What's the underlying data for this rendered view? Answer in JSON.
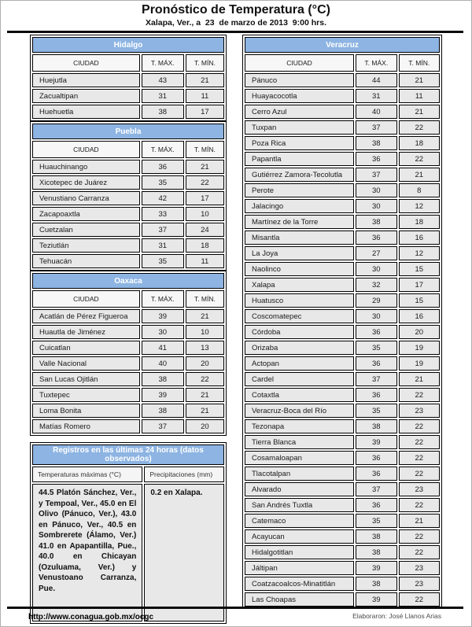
{
  "header": {
    "title": "Pronóstico de Temperatura (°C)",
    "subtitle": "Xalapa, Ver., a  23  de marzo de 2013  9:00 hrs."
  },
  "table_headers": {
    "city": "CIUDAD",
    "tmax": "T. MÁX.",
    "tmin": "T. MÍN."
  },
  "state_tables": [
    {
      "id": "hidalgo",
      "title": "Hidalgo",
      "column": "left",
      "rows": [
        [
          "Huejutla",
          43,
          21
        ],
        [
          "Zacualtipan",
          31,
          11
        ],
        [
          "Huehuetla",
          38,
          17
        ]
      ]
    },
    {
      "id": "puebla",
      "title": "Puebla",
      "column": "left",
      "rows": [
        [
          "Huauchinango",
          36,
          21
        ],
        [
          "Xicotepec de Juárez",
          35,
          22
        ],
        [
          "Venustiano Carranza",
          42,
          17
        ],
        [
          "Zacapoaxtla",
          33,
          10
        ],
        [
          "Cuetzalan",
          37,
          24
        ],
        [
          "Teziutlán",
          31,
          18
        ],
        [
          "Tehuacán",
          35,
          11
        ]
      ]
    },
    {
      "id": "oaxaca",
      "title": "Oaxaca",
      "column": "left",
      "rows": [
        [
          "Acatlán de Pérez Figueroa",
          39,
          21
        ],
        [
          "Huautla de Jiménez",
          30,
          10
        ],
        [
          "Cuicatlan",
          41,
          13
        ],
        [
          "Valle Nacional",
          40,
          20
        ],
        [
          "San Lucas Ojitlán",
          38,
          22
        ],
        [
          "Tuxtepec",
          39,
          21
        ],
        [
          "Loma Bonita",
          38,
          21
        ],
        [
          "Matías Romero",
          37,
          20
        ]
      ]
    },
    {
      "id": "veracruz",
      "title": "Veracruz",
      "column": "right",
      "rows": [
        [
          "Pánuco",
          44,
          21
        ],
        [
          "Huayacocotla",
          31,
          11
        ],
        [
          "Cerro Azul",
          40,
          21
        ],
        [
          "Tuxpan",
          37,
          22
        ],
        [
          "Poza Rica",
          38,
          18
        ],
        [
          "Papantla",
          36,
          22
        ],
        [
          "Gutiérrez Zamora-Tecolutla",
          37,
          21
        ],
        [
          "Perote",
          30,
          8
        ],
        [
          "Jalacingo",
          30,
          12
        ],
        [
          "Martínez de la Torre",
          38,
          18
        ],
        [
          "Misantla",
          36,
          16
        ],
        [
          "La Joya",
          27,
          12
        ],
        [
          "Naolinco",
          30,
          15
        ],
        [
          "Xalapa",
          32,
          17
        ],
        [
          "Huatusco",
          29,
          15
        ],
        [
          "Coscomatepec",
          30,
          16
        ],
        [
          "Córdoba",
          36,
          20
        ],
        [
          "Orizaba",
          35,
          19
        ],
        [
          "Actopan",
          36,
          19
        ],
        [
          "Cardel",
          37,
          21
        ],
        [
          "Cotaxtla",
          36,
          22
        ],
        [
          "Veracruz-Boca del Río",
          35,
          23
        ],
        [
          "Tezonapa",
          38,
          22
        ],
        [
          "Tierra Blanca",
          39,
          22
        ],
        [
          "Cosamaloapan",
          36,
          22
        ],
        [
          "Tlacotalpan",
          36,
          22
        ],
        [
          "Alvarado",
          37,
          23
        ],
        [
          "San Andrés Tuxtla",
          36,
          22
        ],
        [
          "Catemaco",
          35,
          21
        ],
        [
          "Acayucan",
          38,
          22
        ],
        [
          "Hidalgotitlan",
          38,
          22
        ],
        [
          "Jáltipan",
          39,
          23
        ],
        [
          "Coatzacoalcos-Minatitlán",
          38,
          23
        ],
        [
          "Las Choapas",
          39,
          22
        ]
      ]
    }
  ],
  "registros": {
    "title": "Registros en las últimas 24 horas (datos observados)",
    "col1_header": "Temperaturas máximas (°C)",
    "col2_header": "Precipitaciones (mm)",
    "col1_text": "44.5 Platón Sánchez, Ver., y Tempoal, Ver., 45.0 en El Olivo (Pánuco, Ver.), 43.0 en Pánuco, Ver., 40.5 en Sombrerete (Álamo, Ver.) 41.0 en Apapantilla, Pue., 40.0 en Chicayan (Ozuluama, Ver.) y Venustoano Carranza, Pue.",
    "col2_text": "0.2 en Xalapa."
  },
  "footer": {
    "url": "http://www.conagua.gob.mx/ocgc",
    "credit": "Elaboraron: José Llanos Arias"
  },
  "colors": {
    "header_blue": "#8db4e2",
    "row_gray": "#e8e8e8",
    "subheader_gray": "#f7f7f7",
    "border_black": "#000000",
    "header_text_white": "#ffffff"
  }
}
